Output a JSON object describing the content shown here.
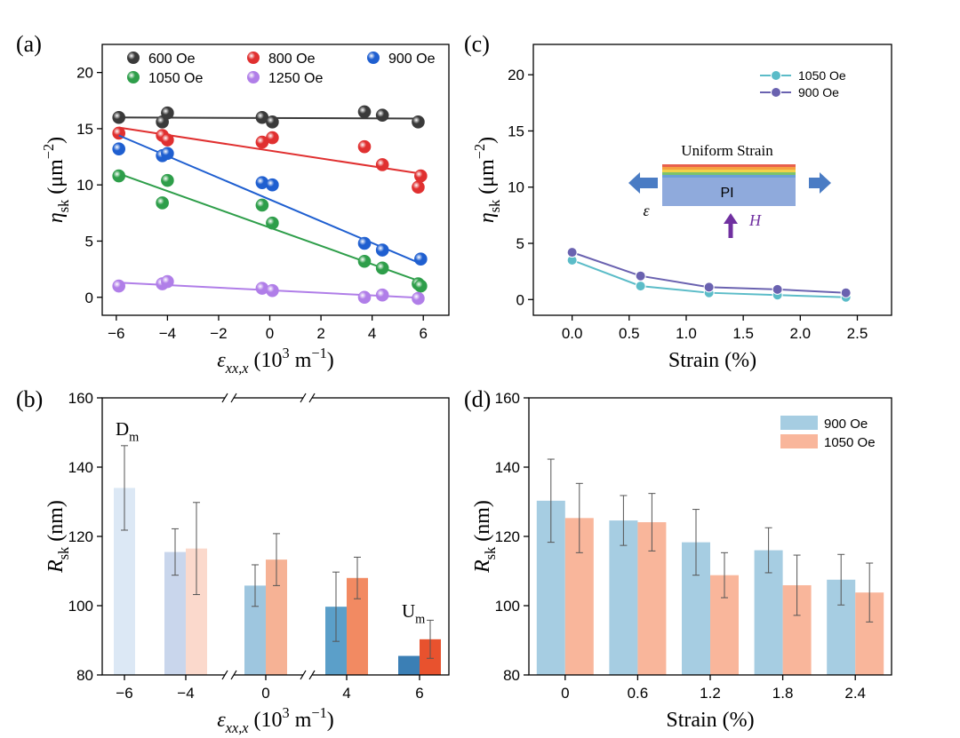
{
  "chart_data": [
    {
      "type": "scatter",
      "panel_label": "(a)",
      "xlabel": [
        "ε",
        "xx,x",
        " (10",
        "3",
        " m",
        "−1",
        ")"
      ],
      "ylabel": [
        "η",
        "sk",
        " (μm",
        "−2",
        ")"
      ],
      "xlim": [
        -6.55,
        7.0
      ],
      "xticks": [
        {
          "value": -6,
          "label": "−6"
        },
        {
          "value": -4,
          "label": "−4"
        },
        {
          "value": -2,
          "label": "−2"
        },
        0,
        2,
        4,
        6
      ],
      "ylim": [
        -1.6,
        22.5
      ],
      "yticks": [
        0,
        5,
        10,
        15,
        20
      ],
      "series": [
        {
          "name": "600 Oe",
          "color": "#3a3a3a",
          "x": [
            -5.9,
            -4.2,
            -4.0,
            -0.3,
            0.1,
            3.7,
            4.4,
            5.8
          ],
          "values": [
            16.0,
            15.6,
            16.4,
            16.0,
            15.6,
            16.5,
            16.2,
            15.6
          ],
          "fit_x": [
            -5.9,
            5.9
          ],
          "fit_y": [
            16.0,
            15.9
          ]
        },
        {
          "name": "800 Oe",
          "color": "#e03030",
          "x": [
            -5.9,
            -4.2,
            -4.0,
            -0.3,
            0.1,
            3.7,
            4.4,
            5.8,
            5.9
          ],
          "values": [
            14.6,
            14.4,
            14.0,
            13.8,
            14.2,
            13.4,
            11.8,
            9.8,
            10.8
          ],
          "fit_x": [
            -5.9,
            5.9
          ],
          "fit_y": [
            15.1,
            11.0
          ]
        },
        {
          "name": "900 Oe",
          "color": "#1f5fd0",
          "x": [
            -5.9,
            -4.2,
            -4.0,
            -0.3,
            0.1,
            3.7,
            4.4,
            5.9
          ],
          "values": [
            13.2,
            12.6,
            12.8,
            10.2,
            10.0,
            4.8,
            4.2,
            3.4
          ],
          "fit_x": [
            -5.9,
            5.9
          ],
          "fit_y": [
            14.4,
            3.0
          ]
        },
        {
          "name": "1050 Oe",
          "color": "#2e9e4a",
          "x": [
            -5.9,
            -4.2,
            -4.0,
            -0.3,
            0.1,
            3.7,
            4.4,
            5.8,
            5.9
          ],
          "values": [
            10.8,
            8.4,
            10.4,
            8.2,
            6.6,
            3.2,
            2.6,
            1.2,
            1.0
          ],
          "fit_x": [
            -5.9,
            5.9
          ],
          "fit_y": [
            11.0,
            1.4
          ]
        },
        {
          "name": "1250 Oe",
          "color": "#b07ee8",
          "x": [
            -5.9,
            -4.2,
            -4.0,
            -0.3,
            0.1,
            3.7,
            4.4,
            5.8
          ],
          "values": [
            1.0,
            1.2,
            1.4,
            0.8,
            0.6,
            0.0,
            0.2,
            -0.1
          ],
          "fit_x": [
            -5.9,
            5.9
          ],
          "fit_y": [
            1.3,
            -0.05
          ]
        }
      ]
    },
    {
      "type": "bar",
      "panel_label": "(b)",
      "xlabel": [
        "ε",
        "xx,x",
        " (10",
        "3",
        " m",
        "−1",
        ")"
      ],
      "ylabel": [
        "R",
        "sk",
        " (nm)"
      ],
      "categories": [
        "−6",
        "−4",
        "0",
        "4",
        "6"
      ],
      "ylim": [
        80,
        160
      ],
      "yticks": [
        80,
        100,
        120,
        140,
        160
      ],
      "annotations": [
        [
          "D",
          "m"
        ],
        [
          "U",
          "m"
        ]
      ],
      "series": [
        {
          "colors": [
            "#dce8f5",
            "#c9d6ec",
            "#9ec6df",
            "#5b9fc9",
            "#3b7fb5"
          ],
          "values": [
            134,
            115.5,
            105.8,
            99.7,
            85.5
          ],
          "errors": [
            12.2,
            6.7,
            6,
            10,
            null
          ]
        },
        {
          "colors": [
            null,
            "#fbd9cc",
            "#f6b295",
            "#f28a62",
            "#e8522e"
          ],
          "values": [
            null,
            116.5,
            113.3,
            108,
            90.3
          ],
          "errors": [
            null,
            13.3,
            7.5,
            6,
            5.5
          ]
        }
      ]
    },
    {
      "type": "line",
      "panel_label": "(c)",
      "xlabel": [
        "Strain (%)"
      ],
      "ylabel": [
        "η",
        "sk",
        " (μm",
        "−2",
        ")"
      ],
      "x": [
        0,
        0.6,
        1.2,
        1.8,
        2.4
      ],
      "xlim": [
        -0.34,
        2.8
      ],
      "xticks": [
        {
          "value": 0,
          "label": "0.0"
        },
        0.5,
        {
          "value": 1,
          "label": "1.0"
        },
        1.5,
        {
          "value": 2,
          "label": "2.0"
        },
        2.5
      ],
      "ylim": [
        -1.4,
        22.7
      ],
      "yticks": [
        0,
        5,
        10,
        15,
        20
      ],
      "legend": "upper right",
      "annotations": [
        "Uniform Strain",
        "PI",
        "ε",
        "H"
      ],
      "series": [
        {
          "name": "1050 Oe",
          "color": "#5bbcc8",
          "values": [
            3.5,
            1.2,
            0.6,
            0.4,
            0.2
          ]
        },
        {
          "name": "900 Oe",
          "color": "#6a62b0",
          "values": [
            4.2,
            2.1,
            1.1,
            0.9,
            0.6
          ]
        }
      ]
    },
    {
      "type": "bar",
      "panel_label": "(d)",
      "xlabel": [
        "Strain (%)"
      ],
      "ylabel": [
        "R",
        "sk",
        " (nm)"
      ],
      "categories": [
        "0",
        "0.6",
        "1.2",
        "1.8",
        "2.4"
      ],
      "ylim": [
        80,
        160
      ],
      "yticks": [
        80,
        100,
        120,
        140,
        160
      ],
      "legend": "upper right",
      "series": [
        {
          "name": "900 Oe",
          "color": "#a6cde2",
          "values": [
            130.3,
            124.6,
            118.3,
            116,
            107.5
          ],
          "errors": [
            12,
            7.2,
            9.5,
            6.5,
            7.3
          ]
        },
        {
          "name": "1050 Oe",
          "color": "#f9b69b",
          "values": [
            125.3,
            124.1,
            108.8,
            105.9,
            103.8
          ],
          "errors": [
            10,
            8.3,
            6.5,
            8.7,
            8.5
          ]
        }
      ]
    }
  ]
}
